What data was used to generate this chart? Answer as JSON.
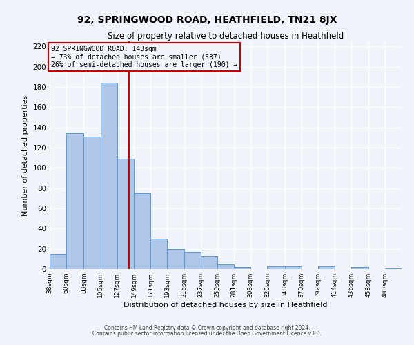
{
  "title": "92, SPRINGWOOD ROAD, HEATHFIELD, TN21 8JX",
  "subtitle": "Size of property relative to detached houses in Heathfield",
  "xlabel": "Distribution of detached houses by size in Heathfield",
  "ylabel": "Number of detached properties",
  "bin_labels": [
    "38sqm",
    "60sqm",
    "83sqm",
    "105sqm",
    "127sqm",
    "149sqm",
    "171sqm",
    "193sqm",
    "215sqm",
    "237sqm",
    "259sqm",
    "281sqm",
    "303sqm",
    "325sqm",
    "348sqm",
    "370sqm",
    "392sqm",
    "414sqm",
    "436sqm",
    "458sqm",
    "480sqm"
  ],
  "bar_heights": [
    15,
    134,
    131,
    184,
    109,
    75,
    30,
    20,
    17,
    13,
    5,
    2,
    0,
    3,
    3,
    0,
    3,
    0,
    2,
    0,
    1
  ],
  "bar_color": "#aec6e8",
  "bar_edge_color": "#5b9bd5",
  "background_color": "#f0f4fa",
  "grid_color": "#ffffff",
  "property_line_x": 143,
  "property_line_color": "#cc0000",
  "annotation_line1": "92 SPRINGWOOD ROAD: 143sqm",
  "annotation_line2": "← 73% of detached houses are smaller (537)",
  "annotation_line3": "26% of semi-detached houses are larger (190) →",
  "annotation_box_color": "#cc0000",
  "ylim": [
    0,
    225
  ],
  "yticks": [
    0,
    20,
    40,
    60,
    80,
    100,
    120,
    140,
    160,
    180,
    200,
    220
  ],
  "footnote1": "Contains HM Land Registry data © Crown copyright and database right 2024.",
  "footnote2": "Contains public sector information licensed under the Open Government Licence v3.0.",
  "bin_edges": [
    38,
    60,
    83,
    105,
    127,
    149,
    171,
    193,
    215,
    237,
    259,
    281,
    303,
    325,
    348,
    370,
    392,
    414,
    436,
    458,
    480
  ]
}
